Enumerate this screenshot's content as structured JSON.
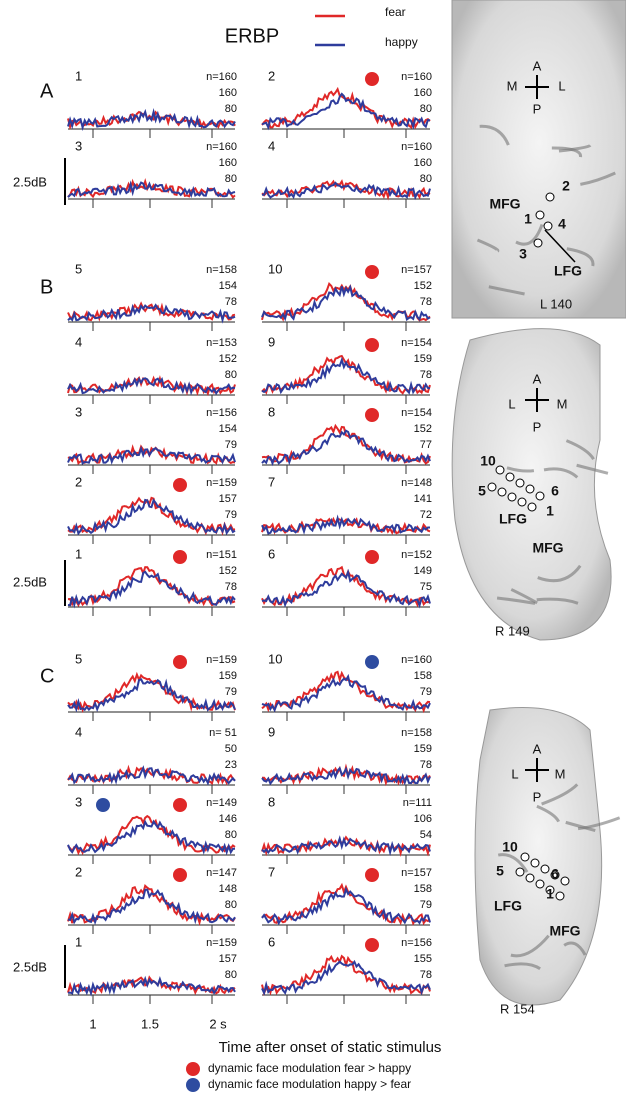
{
  "title": "ERBP",
  "legend": [
    {
      "label": "fear",
      "color": "#e02828"
    },
    {
      "label": "happy",
      "color": "#2e3c9c"
    }
  ],
  "scale_label": "2.5dB",
  "x_axis": {
    "ticks": [
      "1",
      "1.5",
      "2 s"
    ],
    "label": "Time after onset of static stimulus"
  },
  "marker_legend": [
    {
      "label": "dynamic face modulation fear > happy",
      "color": "#e02828"
    },
    {
      "label": "dynamic face modulation happy > fear",
      "color": "#2e4ca0"
    }
  ],
  "sections": [
    {
      "label": "A",
      "panels": [
        {
          "label": "1",
          "n": [
            "n=160",
            "160",
            "80"
          ],
          "markers": []
        },
        {
          "label": "2",
          "n": [
            "n=160",
            "160",
            "80"
          ],
          "markers": [
            "#e02828"
          ]
        },
        {
          "label": "3",
          "n": [
            "n=160",
            "160",
            "80"
          ],
          "markers": []
        },
        {
          "label": "4",
          "n": [
            "n=160",
            "160",
            "80"
          ],
          "markers": []
        }
      ]
    },
    {
      "label": "B",
      "panels": [
        {
          "label": "5",
          "n": [
            "n=158",
            "154",
            "78"
          ],
          "markers": []
        },
        {
          "label": "10",
          "n": [
            "n=157",
            "152",
            "78"
          ],
          "markers": [
            "#e02828"
          ]
        },
        {
          "label": "4",
          "n": [
            "n=153",
            "152",
            "80"
          ],
          "markers": []
        },
        {
          "label": "9",
          "n": [
            "n=154",
            "159",
            "78"
          ],
          "markers": [
            "#e02828"
          ]
        },
        {
          "label": "3",
          "n": [
            "n=156",
            "154",
            "79"
          ],
          "markers": []
        },
        {
          "label": "8",
          "n": [
            "n=154",
            "152",
            "77"
          ],
          "markers": [
            "#e02828"
          ]
        },
        {
          "label": "2",
          "n": [
            "n=159",
            "157",
            "79"
          ],
          "markers": [
            "#e02828"
          ]
        },
        {
          "label": "7",
          "n": [
            "n=148",
            "141",
            "72"
          ],
          "markers": []
        },
        {
          "label": "1",
          "n": [
            "n=151",
            "152",
            "78"
          ],
          "markers": [
            "#e02828"
          ]
        },
        {
          "label": "6",
          "n": [
            "n=152",
            "149",
            "75"
          ],
          "markers": [
            "#e02828"
          ]
        }
      ]
    },
    {
      "label": "C",
      "panels": [
        {
          "label": "5",
          "n": [
            "n=159",
            "159",
            "79"
          ],
          "markers": [
            "#e02828"
          ]
        },
        {
          "label": "10",
          "n": [
            "n=160",
            "158",
            "79"
          ],
          "markers": [
            "#2e4ca0"
          ]
        },
        {
          "label": "4",
          "n": [
            "n= 51",
            "50",
            "23"
          ],
          "markers": []
        },
        {
          "label": "9",
          "n": [
            "n=158",
            "159",
            "78"
          ],
          "markers": []
        },
        {
          "label": "3",
          "n": [
            "n=149",
            "146",
            "80"
          ],
          "markers": [
            "#2e4ca0",
            "#e02828"
          ]
        },
        {
          "label": "8",
          "n": [
            "n=111",
            "106",
            "54"
          ],
          "markers": []
        },
        {
          "label": "2",
          "n": [
            "n=147",
            "148",
            "80"
          ],
          "markers": [
            "#e02828"
          ]
        },
        {
          "label": "7",
          "n": [
            "n=157",
            "158",
            "79"
          ],
          "markers": [
            "#e02828"
          ]
        },
        {
          "label": "1",
          "n": [
            "n=159",
            "157",
            "80"
          ],
          "markers": []
        },
        {
          "label": "6",
          "n": [
            "n=156",
            "155",
            "78"
          ],
          "markers": [
            "#e02828"
          ]
        }
      ]
    }
  ],
  "brains": [
    {
      "caption": "L 140",
      "labels": [
        "A",
        "M",
        "L",
        "P",
        "MFG",
        "1",
        "2",
        "3",
        "4",
        "LFG"
      ]
    },
    {
      "caption": "R 149",
      "labels": [
        "A",
        "L",
        "M",
        "P",
        "10",
        "5",
        "6",
        "LFG",
        "1",
        "MFG"
      ]
    },
    {
      "caption": "R 154",
      "labels": [
        "A",
        "L",
        "M",
        "P",
        "10",
        "5",
        "6",
        "LFG",
        "1",
        "MFG"
      ]
    }
  ]
}
